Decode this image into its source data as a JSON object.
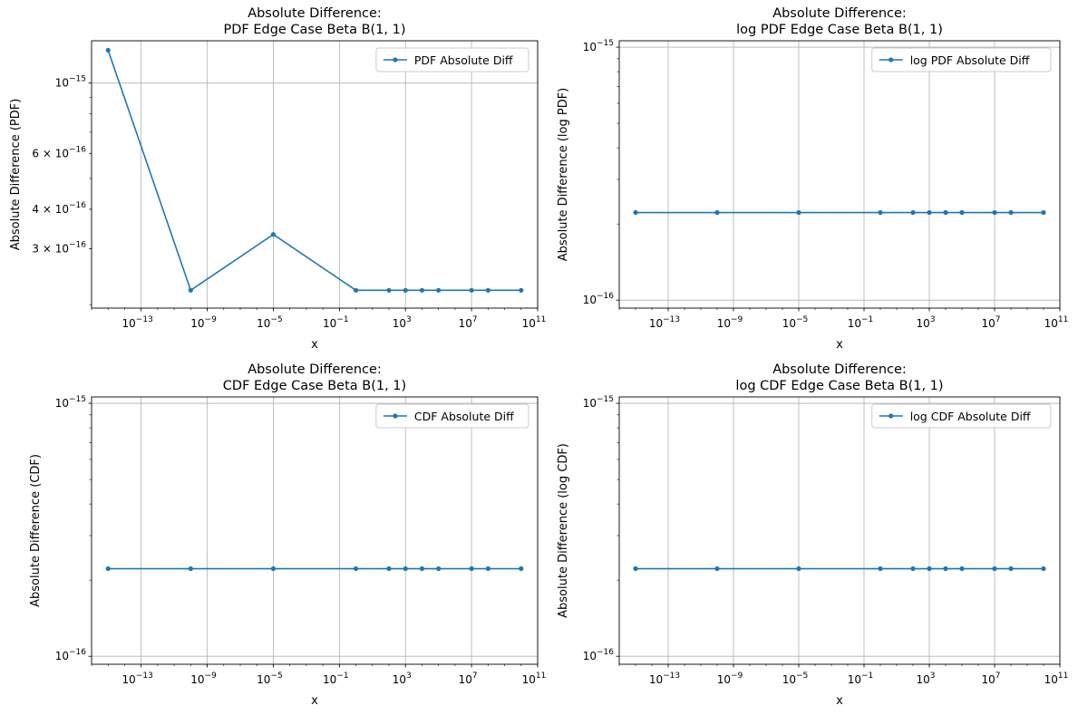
{
  "chart_data": [
    {
      "type": "line",
      "title_line1": "Absolute Difference:",
      "title_line2": "PDF Edge Case Beta B(1, 1)",
      "xlabel": "x",
      "ylabel": "Absolute Difference (PDF)",
      "x_scale": "log",
      "y_scale": "log",
      "xlim": [
        1e-16,
        100000000000.0
      ],
      "ylim": [
        1.95e-16,
        1.36e-15
      ],
      "x_ticks": [
        {
          "value": 1e-13,
          "label": "10",
          "exp": "−13"
        },
        {
          "value": 1e-09,
          "label": "10",
          "exp": "−9"
        },
        {
          "value": 1e-05,
          "label": "10",
          "exp": "−5"
        },
        {
          "value": 0.1,
          "label": "10",
          "exp": "−1"
        },
        {
          "value": 1000,
          "label": "10",
          "exp": "3"
        },
        {
          "value": 10000000.0,
          "label": "10",
          "exp": "7"
        },
        {
          "value": 100000000000.0,
          "label": "10",
          "exp": "11"
        }
      ],
      "y_ticks": [
        {
          "value": 1e-15,
          "label": "10",
          "exp": "−15",
          "major": true
        },
        {
          "value": 6e-16,
          "label": "6 × 10",
          "exp": "−16",
          "major": false
        },
        {
          "value": 4e-16,
          "label": "4 × 10",
          "exp": "−16",
          "major": false
        },
        {
          "value": 3e-16,
          "label": "3 × 10",
          "exp": "−16",
          "major": false
        }
      ],
      "grid": true,
      "legend_position": "top-right",
      "series": [
        {
          "name": "PDF Absolute Diff",
          "color": "#1f77b4",
          "x": [
            1e-15,
            1e-10,
            1e-05,
            1,
            100,
            1000,
            10000,
            100000,
            10000000.0,
            100000000.0,
            10000000000.0
          ],
          "y": [
            1.27e-15,
            2.22e-16,
            3.33e-16,
            2.22e-16,
            2.22e-16,
            2.22e-16,
            2.22e-16,
            2.22e-16,
            2.22e-16,
            2.22e-16,
            2.22e-16
          ]
        }
      ]
    },
    {
      "type": "line",
      "title_line1": "Absolute Difference:",
      "title_line2": "log PDF Edge Case Beta B(1, 1)",
      "xlabel": "x",
      "ylabel": "Absolute Difference (log PDF)",
      "x_scale": "log",
      "y_scale": "log",
      "xlim": [
        1e-16,
        100000000000.0
      ],
      "ylim": [
        9.3e-17,
        1.06e-15
      ],
      "x_ticks": [
        {
          "value": 1e-13,
          "label": "10",
          "exp": "−13"
        },
        {
          "value": 1e-09,
          "label": "10",
          "exp": "−9"
        },
        {
          "value": 1e-05,
          "label": "10",
          "exp": "−5"
        },
        {
          "value": 0.1,
          "label": "10",
          "exp": "−1"
        },
        {
          "value": 1000,
          "label": "10",
          "exp": "3"
        },
        {
          "value": 10000000.0,
          "label": "10",
          "exp": "7"
        },
        {
          "value": 100000000000.0,
          "label": "10",
          "exp": "11"
        }
      ],
      "y_ticks": [
        {
          "value": 1e-15,
          "label": "10",
          "exp": "−15",
          "major": true
        },
        {
          "value": 1e-16,
          "label": "10",
          "exp": "−16",
          "major": true
        }
      ],
      "grid": true,
      "legend_position": "top-right",
      "series": [
        {
          "name": "log PDF Absolute Diff",
          "color": "#1f77b4",
          "x": [
            1e-15,
            1e-10,
            1e-05,
            1,
            100,
            1000,
            10000,
            100000,
            10000000.0,
            100000000.0,
            10000000000.0
          ],
          "y": [
            2.22e-16,
            2.22e-16,
            2.22e-16,
            2.22e-16,
            2.22e-16,
            2.22e-16,
            2.22e-16,
            2.22e-16,
            2.22e-16,
            2.22e-16,
            2.22e-16
          ]
        }
      ]
    },
    {
      "type": "line",
      "title_line1": "Absolute Difference:",
      "title_line2": "CDF Edge Case Beta B(1, 1)",
      "xlabel": "x",
      "ylabel": "Absolute Difference (CDF)",
      "x_scale": "log",
      "y_scale": "log",
      "xlim": [
        1e-16,
        100000000000.0
      ],
      "ylim": [
        9.3e-17,
        1.06e-15
      ],
      "x_ticks": [
        {
          "value": 1e-13,
          "label": "10",
          "exp": "−13"
        },
        {
          "value": 1e-09,
          "label": "10",
          "exp": "−9"
        },
        {
          "value": 1e-05,
          "label": "10",
          "exp": "−5"
        },
        {
          "value": 0.1,
          "label": "10",
          "exp": "−1"
        },
        {
          "value": 1000,
          "label": "10",
          "exp": "3"
        },
        {
          "value": 10000000.0,
          "label": "10",
          "exp": "7"
        },
        {
          "value": 100000000000.0,
          "label": "10",
          "exp": "11"
        }
      ],
      "y_ticks": [
        {
          "value": 1e-15,
          "label": "10",
          "exp": "−15",
          "major": true
        },
        {
          "value": 1e-16,
          "label": "10",
          "exp": "−16",
          "major": true
        }
      ],
      "grid": true,
      "legend_position": "top-right",
      "series": [
        {
          "name": "CDF Absolute Diff",
          "color": "#1f77b4",
          "x": [
            1e-15,
            1e-10,
            1e-05,
            1,
            100,
            1000,
            10000,
            100000,
            10000000.0,
            100000000.0,
            10000000000.0
          ],
          "y": [
            2.22e-16,
            2.22e-16,
            2.22e-16,
            2.22e-16,
            2.22e-16,
            2.22e-16,
            2.22e-16,
            2.22e-16,
            2.22e-16,
            2.22e-16,
            2.22e-16
          ]
        }
      ]
    },
    {
      "type": "line",
      "title_line1": "Absolute Difference:",
      "title_line2": "log CDF Edge Case Beta B(1, 1)",
      "xlabel": "x",
      "ylabel": "Absolute Difference (log CDF)",
      "x_scale": "log",
      "y_scale": "log",
      "xlim": [
        1e-16,
        100000000000.0
      ],
      "ylim": [
        9.3e-17,
        1.06e-15
      ],
      "x_ticks": [
        {
          "value": 1e-13,
          "label": "10",
          "exp": "−13"
        },
        {
          "value": 1e-09,
          "label": "10",
          "exp": "−9"
        },
        {
          "value": 1e-05,
          "label": "10",
          "exp": "−5"
        },
        {
          "value": 0.1,
          "label": "10",
          "exp": "−1"
        },
        {
          "value": 1000,
          "label": "10",
          "exp": "3"
        },
        {
          "value": 10000000.0,
          "label": "10",
          "exp": "7"
        },
        {
          "value": 100000000000.0,
          "label": "10",
          "exp": "11"
        }
      ],
      "y_ticks": [
        {
          "value": 1e-15,
          "label": "10",
          "exp": "−15",
          "major": true
        },
        {
          "value": 1e-16,
          "label": "10",
          "exp": "−16",
          "major": true
        }
      ],
      "grid": true,
      "legend_position": "top-right",
      "series": [
        {
          "name": "log CDF Absolute Diff",
          "color": "#1f77b4",
          "x": [
            1e-15,
            1e-10,
            1e-05,
            1,
            100,
            1000,
            10000,
            100000,
            10000000.0,
            100000000.0,
            10000000000.0
          ],
          "y": [
            2.22e-16,
            2.22e-16,
            2.22e-16,
            2.22e-16,
            2.22e-16,
            2.22e-16,
            2.22e-16,
            2.22e-16,
            2.22e-16,
            2.22e-16,
            2.22e-16
          ]
        }
      ]
    }
  ]
}
